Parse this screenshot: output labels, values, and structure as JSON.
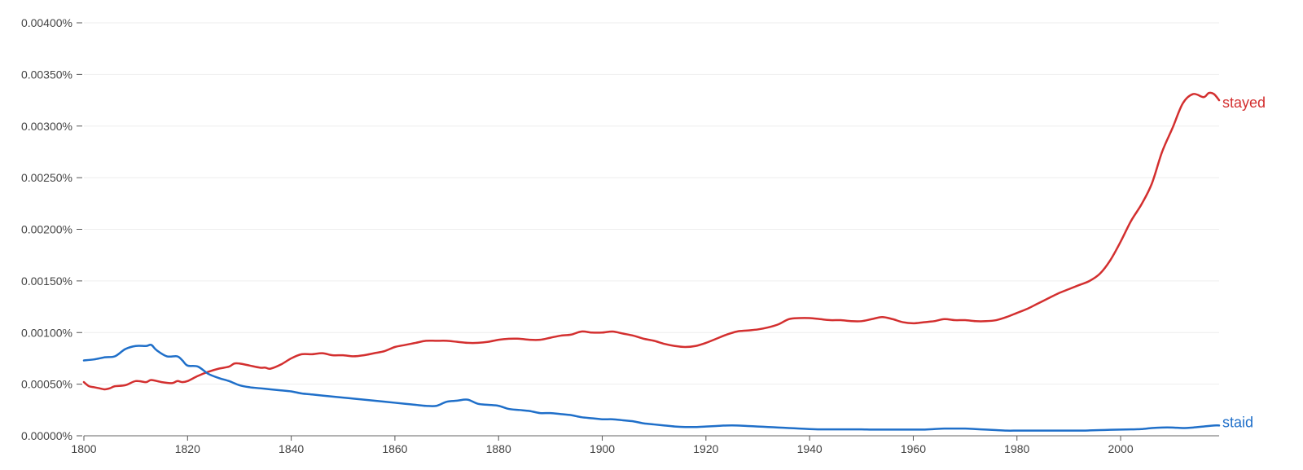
{
  "chart_data": {
    "type": "line",
    "title": "",
    "xlabel": "",
    "ylabel": "",
    "xlim": [
      1800,
      2019
    ],
    "ylim": [
      0,
      0.004
    ],
    "grid": true,
    "legend": "inline-right",
    "x_ticks": [
      1800,
      1820,
      1840,
      1860,
      1880,
      1900,
      1920,
      1940,
      1960,
      1980,
      2000
    ],
    "x_tick_labels": [
      "1800",
      "1820",
      "1840",
      "1860",
      "1880",
      "1900",
      "1920",
      "1940",
      "1960",
      "1980",
      "2000"
    ],
    "y_ticks": [
      0,
      0.0005,
      0.001,
      0.0015,
      0.002,
      0.0025,
      0.003,
      0.0035,
      0.004
    ],
    "y_tick_labels": [
      "0.00000%",
      "0.00050%",
      "0.00100%",
      "0.00150%",
      "0.00200%",
      "0.00250%",
      "0.00300%",
      "0.00350%",
      "0.00400%"
    ],
    "series": [
      {
        "name": "stayed",
        "color": "#d32f2f",
        "points": [
          [
            1800,
            0.00052
          ],
          [
            1801,
            0.00048
          ],
          [
            1802,
            0.00047
          ],
          [
            1803,
            0.00046
          ],
          [
            1804,
            0.00045
          ],
          [
            1805,
            0.00046
          ],
          [
            1806,
            0.00048
          ],
          [
            1808,
            0.00049
          ],
          [
            1810,
            0.00053
          ],
          [
            1812,
            0.00052
          ],
          [
            1813,
            0.00054
          ],
          [
            1815,
            0.00052
          ],
          [
            1817,
            0.00051
          ],
          [
            1818,
            0.00053
          ],
          [
            1819,
            0.00052
          ],
          [
            1820,
            0.00053
          ],
          [
            1822,
            0.00058
          ],
          [
            1824,
            0.00062
          ],
          [
            1826,
            0.00065
          ],
          [
            1828,
            0.00067
          ],
          [
            1829,
            0.0007
          ],
          [
            1830,
            0.0007
          ],
          [
            1832,
            0.00068
          ],
          [
            1834,
            0.00066
          ],
          [
            1835,
            0.00066
          ],
          [
            1836,
            0.00065
          ],
          [
            1838,
            0.00069
          ],
          [
            1840,
            0.00075
          ],
          [
            1842,
            0.00079
          ],
          [
            1844,
            0.00079
          ],
          [
            1846,
            0.0008
          ],
          [
            1848,
            0.00078
          ],
          [
            1850,
            0.00078
          ],
          [
            1852,
            0.00077
          ],
          [
            1854,
            0.00078
          ],
          [
            1856,
            0.0008
          ],
          [
            1858,
            0.00082
          ],
          [
            1860,
            0.00086
          ],
          [
            1862,
            0.00088
          ],
          [
            1864,
            0.0009
          ],
          [
            1866,
            0.00092
          ],
          [
            1868,
            0.00092
          ],
          [
            1870,
            0.00092
          ],
          [
            1872,
            0.00091
          ],
          [
            1874,
            0.0009
          ],
          [
            1876,
            0.0009
          ],
          [
            1878,
            0.00091
          ],
          [
            1880,
            0.00093
          ],
          [
            1882,
            0.00094
          ],
          [
            1884,
            0.00094
          ],
          [
            1886,
            0.00093
          ],
          [
            1888,
            0.00093
          ],
          [
            1890,
            0.00095
          ],
          [
            1892,
            0.00097
          ],
          [
            1894,
            0.00098
          ],
          [
            1896,
            0.00101
          ],
          [
            1898,
            0.001
          ],
          [
            1900,
            0.001
          ],
          [
            1902,
            0.00101
          ],
          [
            1904,
            0.00099
          ],
          [
            1906,
            0.00097
          ],
          [
            1908,
            0.00094
          ],
          [
            1910,
            0.00092
          ],
          [
            1912,
            0.00089
          ],
          [
            1914,
            0.00087
          ],
          [
            1916,
            0.00086
          ],
          [
            1918,
            0.00087
          ],
          [
            1920,
            0.0009
          ],
          [
            1922,
            0.00094
          ],
          [
            1924,
            0.00098
          ],
          [
            1926,
            0.00101
          ],
          [
            1928,
            0.00102
          ],
          [
            1930,
            0.00103
          ],
          [
            1932,
            0.00105
          ],
          [
            1934,
            0.00108
          ],
          [
            1936,
            0.00113
          ],
          [
            1938,
            0.00114
          ],
          [
            1940,
            0.00114
          ],
          [
            1942,
            0.00113
          ],
          [
            1944,
            0.00112
          ],
          [
            1946,
            0.00112
          ],
          [
            1948,
            0.00111
          ],
          [
            1950,
            0.00111
          ],
          [
            1952,
            0.00113
          ],
          [
            1954,
            0.00115
          ],
          [
            1956,
            0.00113
          ],
          [
            1958,
            0.0011
          ],
          [
            1960,
            0.00109
          ],
          [
            1962,
            0.0011
          ],
          [
            1964,
            0.00111
          ],
          [
            1966,
            0.00113
          ],
          [
            1968,
            0.00112
          ],
          [
            1970,
            0.00112
          ],
          [
            1972,
            0.00111
          ],
          [
            1974,
            0.00111
          ],
          [
            1976,
            0.00112
          ],
          [
            1978,
            0.00115
          ],
          [
            1980,
            0.00119
          ],
          [
            1982,
            0.00123
          ],
          [
            1984,
            0.00128
          ],
          [
            1986,
            0.00133
          ],
          [
            1988,
            0.00138
          ],
          [
            1990,
            0.00142
          ],
          [
            1992,
            0.00146
          ],
          [
            1994,
            0.0015
          ],
          [
            1996,
            0.00157
          ],
          [
            1998,
            0.0017
          ],
          [
            2000,
            0.00188
          ],
          [
            2002,
            0.00208
          ],
          [
            2004,
            0.00224
          ],
          [
            2006,
            0.00244
          ],
          [
            2008,
            0.00275
          ],
          [
            2010,
            0.00298
          ],
          [
            2012,
            0.00322
          ],
          [
            2014,
            0.00331
          ],
          [
            2016,
            0.00328
          ],
          [
            2017,
            0.00332
          ],
          [
            2018,
            0.00331
          ],
          [
            2019,
            0.00325
          ]
        ]
      },
      {
        "name": "staid",
        "color": "#1f6fc9",
        "points": [
          [
            1800,
            0.00073
          ],
          [
            1802,
            0.00074
          ],
          [
            1804,
            0.00076
          ],
          [
            1806,
            0.00077
          ],
          [
            1808,
            0.00084
          ],
          [
            1810,
            0.00087
          ],
          [
            1812,
            0.00087
          ],
          [
            1813,
            0.00088
          ],
          [
            1814,
            0.00083
          ],
          [
            1816,
            0.00077
          ],
          [
            1818,
            0.00077
          ],
          [
            1819,
            0.00073
          ],
          [
            1820,
            0.00068
          ],
          [
            1822,
            0.00067
          ],
          [
            1824,
            0.0006
          ],
          [
            1826,
            0.00056
          ],
          [
            1828,
            0.00053
          ],
          [
            1830,
            0.00049
          ],
          [
            1832,
            0.00047
          ],
          [
            1834,
            0.00046
          ],
          [
            1836,
            0.00045
          ],
          [
            1838,
            0.00044
          ],
          [
            1840,
            0.00043
          ],
          [
            1842,
            0.00041
          ],
          [
            1844,
            0.0004
          ],
          [
            1846,
            0.00039
          ],
          [
            1848,
            0.00038
          ],
          [
            1850,
            0.00037
          ],
          [
            1852,
            0.00036
          ],
          [
            1854,
            0.00035
          ],
          [
            1856,
            0.00034
          ],
          [
            1858,
            0.00033
          ],
          [
            1860,
            0.00032
          ],
          [
            1862,
            0.00031
          ],
          [
            1864,
            0.0003
          ],
          [
            1866,
            0.00029
          ],
          [
            1868,
            0.00029
          ],
          [
            1870,
            0.00033
          ],
          [
            1872,
            0.00034
          ],
          [
            1874,
            0.00035
          ],
          [
            1876,
            0.00031
          ],
          [
            1878,
            0.0003
          ],
          [
            1880,
            0.00029
          ],
          [
            1882,
            0.00026
          ],
          [
            1884,
            0.00025
          ],
          [
            1886,
            0.00024
          ],
          [
            1888,
            0.00022
          ],
          [
            1890,
            0.00022
          ],
          [
            1892,
            0.00021
          ],
          [
            1894,
            0.0002
          ],
          [
            1896,
            0.00018
          ],
          [
            1898,
            0.00017
          ],
          [
            1900,
            0.00016
          ],
          [
            1902,
            0.00016
          ],
          [
            1904,
            0.00015
          ],
          [
            1906,
            0.00014
          ],
          [
            1908,
            0.00012
          ],
          [
            1910,
            0.00011
          ],
          [
            1912,
            0.0001
          ],
          [
            1914,
            9e-05
          ],
          [
            1916,
            8.5e-05
          ],
          [
            1918,
            8.5e-05
          ],
          [
            1920,
            9e-05
          ],
          [
            1922,
            9.5e-05
          ],
          [
            1924,
            0.0001
          ],
          [
            1926,
            0.0001
          ],
          [
            1928,
            9.5e-05
          ],
          [
            1930,
            9e-05
          ],
          [
            1932,
            8.5e-05
          ],
          [
            1934,
            8e-05
          ],
          [
            1936,
            7.5e-05
          ],
          [
            1938,
            7e-05
          ],
          [
            1940,
            6.5e-05
          ],
          [
            1942,
            6.2e-05
          ],
          [
            1944,
            6.2e-05
          ],
          [
            1946,
            6.2e-05
          ],
          [
            1948,
            6.2e-05
          ],
          [
            1950,
            6.2e-05
          ],
          [
            1952,
            6e-05
          ],
          [
            1954,
            6e-05
          ],
          [
            1956,
            6e-05
          ],
          [
            1958,
            6e-05
          ],
          [
            1960,
            6e-05
          ],
          [
            1962,
            6e-05
          ],
          [
            1964,
            6.5e-05
          ],
          [
            1966,
            7e-05
          ],
          [
            1968,
            7e-05
          ],
          [
            1970,
            7e-05
          ],
          [
            1972,
            6.5e-05
          ],
          [
            1974,
            6e-05
          ],
          [
            1976,
            5.5e-05
          ],
          [
            1978,
            5e-05
          ],
          [
            1980,
            5e-05
          ],
          [
            1982,
            5e-05
          ],
          [
            1984,
            5e-05
          ],
          [
            1986,
            5e-05
          ],
          [
            1988,
            5e-05
          ],
          [
            1990,
            5e-05
          ],
          [
            1992,
            5e-05
          ],
          [
            1994,
            5.2e-05
          ],
          [
            1996,
            5.5e-05
          ],
          [
            1998,
            5.8e-05
          ],
          [
            2000,
            6e-05
          ],
          [
            2002,
            6.2e-05
          ],
          [
            2004,
            6.5e-05
          ],
          [
            2006,
            7.5e-05
          ],
          [
            2008,
            8e-05
          ],
          [
            2010,
            8e-05
          ],
          [
            2012,
            7.5e-05
          ],
          [
            2014,
            8e-05
          ],
          [
            2016,
            9e-05
          ],
          [
            2018,
            0.0001
          ],
          [
            2019,
            0.0001
          ]
        ]
      }
    ]
  }
}
